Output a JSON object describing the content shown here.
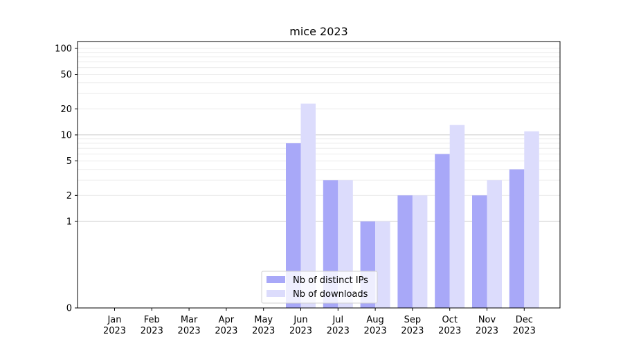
{
  "chart_data": {
    "type": "bar",
    "title": "mice 2023",
    "xlabel": "",
    "ylabel": "",
    "y_scale": "symlog",
    "ylim": [
      0,
      120
    ],
    "y_ticks": [
      0,
      1,
      2,
      5,
      10,
      20,
      50,
      100
    ],
    "y_tick_labels": [
      "0",
      "1",
      "2",
      "5",
      "10",
      "20",
      "50",
      "100"
    ],
    "categories": [
      "Jan\n2023",
      "Feb\n2023",
      "Mar\n2023",
      "Apr\n2023",
      "May\n2023",
      "Jun\n2023",
      "Jul\n2023",
      "Aug\n2023",
      "Sep\n2023",
      "Oct\n2023",
      "Nov\n2023",
      "Dec\n2023"
    ],
    "series": [
      {
        "name": "Nb of distinct IPs",
        "color": "#a8a8f8",
        "values": [
          0,
          0,
          0,
          0,
          0,
          8,
          3,
          1,
          2,
          6,
          2,
          4
        ]
      },
      {
        "name": "Nb of downloads",
        "color": "#dcdcfc",
        "values": [
          0,
          0,
          0,
          0,
          0,
          23,
          3,
          1,
          2,
          13,
          3,
          11
        ]
      }
    ],
    "legend_position": "lower-center",
    "grid": "horizontal"
  }
}
